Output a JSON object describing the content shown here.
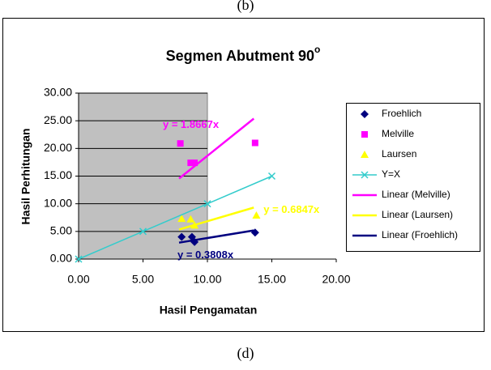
{
  "captions": {
    "top": "(b)",
    "bottom": "(d)"
  },
  "chart_data": {
    "type": "scatter",
    "title": "Segmen Abutment 90",
    "title_superscript": "o",
    "x_label": "Hasil Pengamatan",
    "y_label": "Hasil Perhitungan",
    "xlim": [
      0,
      20
    ],
    "ylim": [
      0,
      30
    ],
    "xticks": [
      {
        "value": 0,
        "label": "0.00"
      },
      {
        "value": 5,
        "label": "5.00"
      },
      {
        "value": 10,
        "label": "10.00"
      },
      {
        "value": 15,
        "label": "15.00"
      },
      {
        "value": 20,
        "label": "20.00"
      }
    ],
    "yticks": [
      {
        "value": 0,
        "label": "0.00"
      },
      {
        "value": 5,
        "label": "5.00"
      },
      {
        "value": 10,
        "label": "10.00"
      },
      {
        "value": 15,
        "label": "15.00"
      },
      {
        "value": 20,
        "label": "20.00"
      },
      {
        "value": 25,
        "label": "25.00"
      },
      {
        "value": 30,
        "label": "30.00"
      }
    ],
    "grid": true,
    "legend": "right",
    "plot_background": "#c0c0c0",
    "series": [
      {
        "name": "Froehlich",
        "color": "#000080",
        "marker": "diamond",
        "x": [
          8.0,
          8.8,
          9.0,
          13.7
        ],
        "values": [
          4.0,
          4.0,
          3.1,
          4.8
        ]
      },
      {
        "name": "Melville",
        "color": "#ff00ff",
        "marker": "square",
        "x": [
          7.9,
          8.7,
          9.0,
          13.7
        ],
        "values": [
          20.9,
          17.4,
          17.4,
          21.0
        ]
      },
      {
        "name": "Laursen",
        "color": "#ffff00",
        "marker": "triangle",
        "x": [
          8.0,
          8.7,
          9.0,
          13.8
        ],
        "values": [
          7.3,
          7.2,
          6.1,
          7.9
        ]
      },
      {
        "name": "Y=X",
        "color": "#33cccc",
        "marker": "cross",
        "line": true,
        "x": [
          0,
          5,
          10,
          15
        ],
        "values": [
          0,
          5,
          10,
          15
        ]
      }
    ],
    "trendlines": [
      {
        "name": "Linear (Melville)",
        "color": "#ff00ff",
        "slope": 1.8667,
        "label": "y = 1.8667x",
        "xrange": [
          7.8,
          13.6
        ]
      },
      {
        "name": "Linear (Laursen)",
        "color": "#ffff00",
        "slope": 0.6847,
        "label": "y = 0.6847x",
        "xrange": [
          7.8,
          13.6
        ]
      },
      {
        "name": "Linear (Froehlich)",
        "color": "#000080",
        "slope": 0.3808,
        "label": "y = 0.3808x",
        "xrange": [
          7.8,
          13.6
        ]
      }
    ]
  }
}
